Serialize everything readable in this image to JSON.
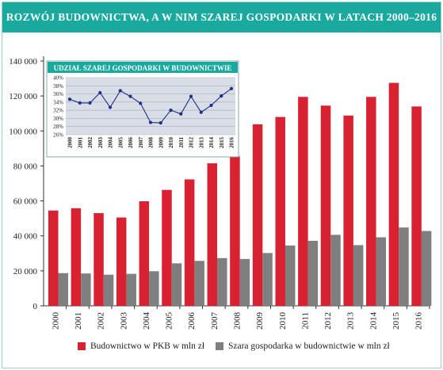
{
  "title": "ROZWÓJ BUDOWNICTWA, A W NIM SZAREJ GOSPODARKI W LATACH 2000–2016",
  "colors": {
    "banner": "#1aa99f",
    "red": "#d92231",
    "gray": "#7f7f7f",
    "inset_bg": "#d9dde6",
    "inset_line": "#1e2f8c"
  },
  "chart_data": [
    {
      "type": "bar",
      "title": "",
      "categories": [
        "2000",
        "2001",
        "2002",
        "2003",
        "2004",
        "2005",
        "2006",
        "2007",
        "2008",
        "2009",
        "2010",
        "2011",
        "2012",
        "2013",
        "2014",
        "2015",
        "2016"
      ],
      "series": [
        {
          "name": "Budownictwo w PKB w mln zł",
          "color": "#d92231",
          "values": [
            54500,
            55800,
            53000,
            50500,
            59800,
            66300,
            72300,
            81500,
            85500,
            103800,
            108000,
            119500,
            114500,
            108800,
            119500,
            127500,
            114000
          ]
        },
        {
          "name": "Szara gospodarka w budownictwie w mln zł",
          "color": "#7f7f7f",
          "values": [
            18700,
            18500,
            17800,
            18300,
            19800,
            24300,
            25700,
            27300,
            26800,
            30200,
            34500,
            37200,
            40600,
            34700,
            39200,
            44800,
            42800
          ]
        }
      ],
      "ylim": [
        0,
        140000
      ],
      "yticks": [
        "0",
        "20 000",
        "40 000",
        "60 000",
        "80 000",
        "100 000",
        "120 000",
        "140 000"
      ],
      "legend": "bottom"
    },
    {
      "type": "line",
      "title": "UDZIAŁ SZAREJ GOSPODARKI W BUDOWNICTWIE",
      "x": [
        "2000",
        "2001",
        "2002",
        "2003",
        "2004",
        "2005",
        "2006",
        "2007",
        "2008",
        "2009",
        "2010",
        "2011",
        "2012",
        "2013",
        "2014",
        "2015",
        "2016"
      ],
      "values": [
        34.7,
        33.8,
        33.8,
        36.3,
        32.7,
        36.8,
        35.4,
        33.7,
        29.0,
        28.9,
        32.0,
        31.1,
        35.4,
        31.5,
        33.2,
        35.5,
        37.3
      ],
      "ylim": [
        26,
        40
      ],
      "yticks": [
        "26%",
        "28%",
        "30%",
        "32%",
        "34%",
        "36%",
        "38%",
        "40%"
      ],
      "grid": true
    }
  ]
}
